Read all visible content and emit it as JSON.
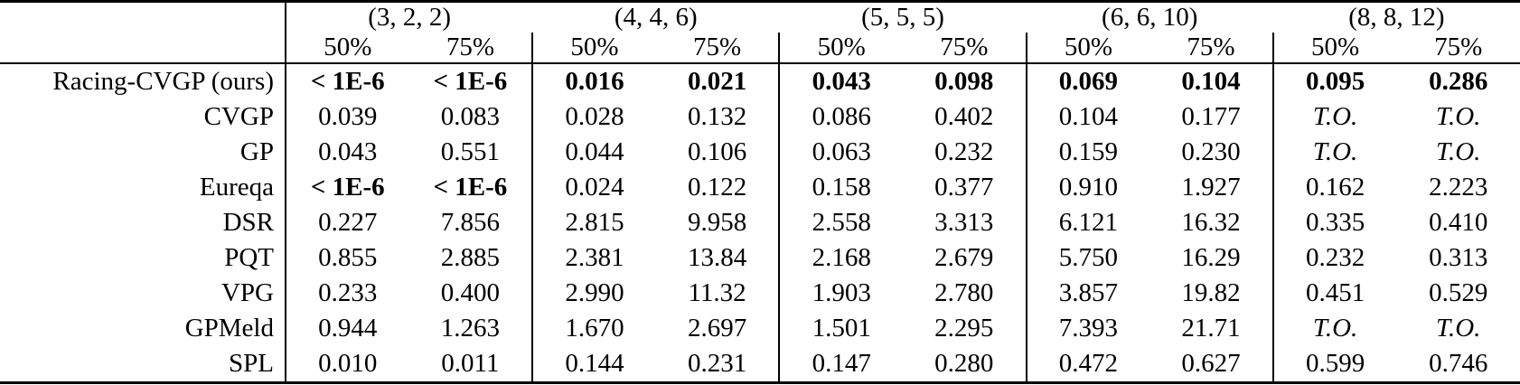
{
  "colors": {
    "background": "#ffffff",
    "text": "#000000",
    "border": "#000000"
  },
  "table": {
    "corner_label": "",
    "col_groups": [
      {
        "label": "(3, 2, 2)"
      },
      {
        "label": "(4, 4, 6)"
      },
      {
        "label": "(5, 5, 5)"
      },
      {
        "label": "(6, 6, 10)"
      },
      {
        "label": "(8, 8, 12)"
      }
    ],
    "sub_headers": [
      "50%",
      "75%"
    ],
    "rows": [
      {
        "label": "Racing-CVGP (ours)",
        "values": [
          "< 1E-6",
          "< 1E-6",
          "0.016",
          "0.021",
          "0.043",
          "0.098",
          "0.069",
          "0.104",
          "0.095",
          "0.286"
        ],
        "styles": [
          "bold",
          "bold",
          "bold",
          "bold",
          "bold",
          "bold",
          "bold",
          "bold",
          "bold",
          "bold"
        ]
      },
      {
        "label": "CVGP",
        "values": [
          "0.039",
          "0.083",
          "0.028",
          "0.132",
          "0.086",
          "0.402",
          "0.104",
          "0.177",
          "T.O.",
          "T.O."
        ],
        "styles": [
          "normal",
          "normal",
          "normal",
          "normal",
          "normal",
          "normal",
          "normal",
          "normal",
          "italic",
          "italic"
        ]
      },
      {
        "label": "GP",
        "values": [
          "0.043",
          "0.551",
          "0.044",
          "0.106",
          "0.063",
          "0.232",
          "0.159",
          "0.230",
          "T.O.",
          "T.O."
        ],
        "styles": [
          "normal",
          "normal",
          "normal",
          "normal",
          "normal",
          "normal",
          "normal",
          "normal",
          "italic",
          "italic"
        ]
      },
      {
        "label": "Eureqa",
        "values": [
          "< 1E-6",
          "< 1E-6",
          "0.024",
          "0.122",
          "0.158",
          "0.377",
          "0.910",
          "1.927",
          "0.162",
          "2.223"
        ],
        "styles": [
          "bold",
          "bold",
          "normal",
          "normal",
          "normal",
          "normal",
          "normal",
          "normal",
          "normal",
          "normal"
        ]
      },
      {
        "label": "DSR",
        "values": [
          "0.227",
          "7.856",
          "2.815",
          "9.958",
          "2.558",
          "3.313",
          "6.121",
          "16.32",
          "0.335",
          "0.410"
        ],
        "styles": [
          "normal",
          "normal",
          "normal",
          "normal",
          "normal",
          "normal",
          "normal",
          "normal",
          "normal",
          "normal"
        ]
      },
      {
        "label": "PQT",
        "values": [
          "0.855",
          "2.885",
          "2.381",
          "13.84",
          "2.168",
          "2.679",
          "5.750",
          "16.29",
          "0.232",
          "0.313"
        ],
        "styles": [
          "normal",
          "normal",
          "normal",
          "normal",
          "normal",
          "normal",
          "normal",
          "normal",
          "normal",
          "normal"
        ]
      },
      {
        "label": "VPG",
        "values": [
          "0.233",
          "0.400",
          "2.990",
          "11.32",
          "1.903",
          "2.780",
          "3.857",
          "19.82",
          "0.451",
          "0.529"
        ],
        "styles": [
          "normal",
          "normal",
          "normal",
          "normal",
          "normal",
          "normal",
          "normal",
          "normal",
          "normal",
          "normal"
        ]
      },
      {
        "label": "GPMeld",
        "values": [
          "0.944",
          "1.263",
          "1.670",
          "2.697",
          "1.501",
          "2.295",
          "7.393",
          "21.71",
          "T.O.",
          "T.O."
        ],
        "styles": [
          "normal",
          "normal",
          "normal",
          "normal",
          "normal",
          "normal",
          "normal",
          "normal",
          "italic",
          "italic"
        ]
      },
      {
        "label": "SPL",
        "values": [
          "0.010",
          "0.011",
          "0.144",
          "0.231",
          "0.147",
          "0.280",
          "0.472",
          "0.627",
          "0.599",
          "0.746"
        ],
        "styles": [
          "normal",
          "normal",
          "normal",
          "normal",
          "normal",
          "normal",
          "normal",
          "normal",
          "normal",
          "normal"
        ]
      }
    ]
  }
}
